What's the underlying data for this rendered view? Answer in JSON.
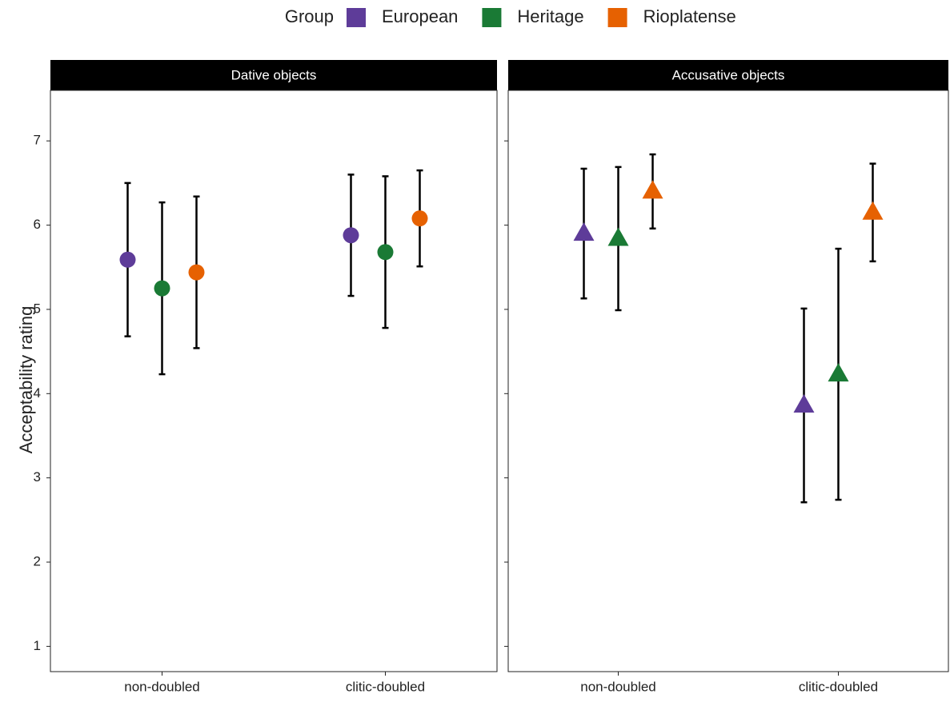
{
  "legend_title": "Group",
  "ylabel": "Acceptability rating",
  "chart_data": [
    {
      "type": "pointrange",
      "title": "Dative objects",
      "marker": "circle",
      "categories": [
        "non-doubled",
        "clitic-doubled"
      ],
      "series": [
        {
          "name": "European",
          "color": "#5e3c99",
          "values": [
            5.59,
            5.88
          ],
          "errors": [
            0.91,
            0.72
          ]
        },
        {
          "name": "Heritage",
          "color": "#1a7a35",
          "values": [
            5.25,
            5.68
          ],
          "errors": [
            1.02,
            0.9
          ]
        },
        {
          "name": "Rioplatense",
          "color": "#e66101",
          "values": [
            5.44,
            6.08
          ],
          "errors": [
            0.9,
            0.57
          ]
        }
      ],
      "ylim": [
        0.7,
        7.6
      ],
      "yticks": [
        1,
        2,
        3,
        4,
        5,
        6,
        7
      ]
    },
    {
      "type": "pointrange",
      "title": "Accusative objects",
      "marker": "triangle",
      "categories": [
        "non-doubled",
        "clitic-doubled"
      ],
      "series": [
        {
          "name": "European",
          "color": "#5e3c99",
          "values": [
            5.9,
            3.86
          ],
          "errors": [
            0.77,
            1.15
          ]
        },
        {
          "name": "Heritage",
          "color": "#1a7a35",
          "values": [
            5.84,
            4.23
          ],
          "errors": [
            0.85,
            1.49
          ]
        },
        {
          "name": "Rioplatense",
          "color": "#e66101",
          "values": [
            6.4,
            6.15
          ],
          "errors": [
            0.44,
            0.58
          ]
        }
      ],
      "ylim": [
        0.7,
        7.6
      ],
      "yticks": [
        1,
        2,
        3,
        4,
        5,
        6,
        7
      ]
    }
  ]
}
